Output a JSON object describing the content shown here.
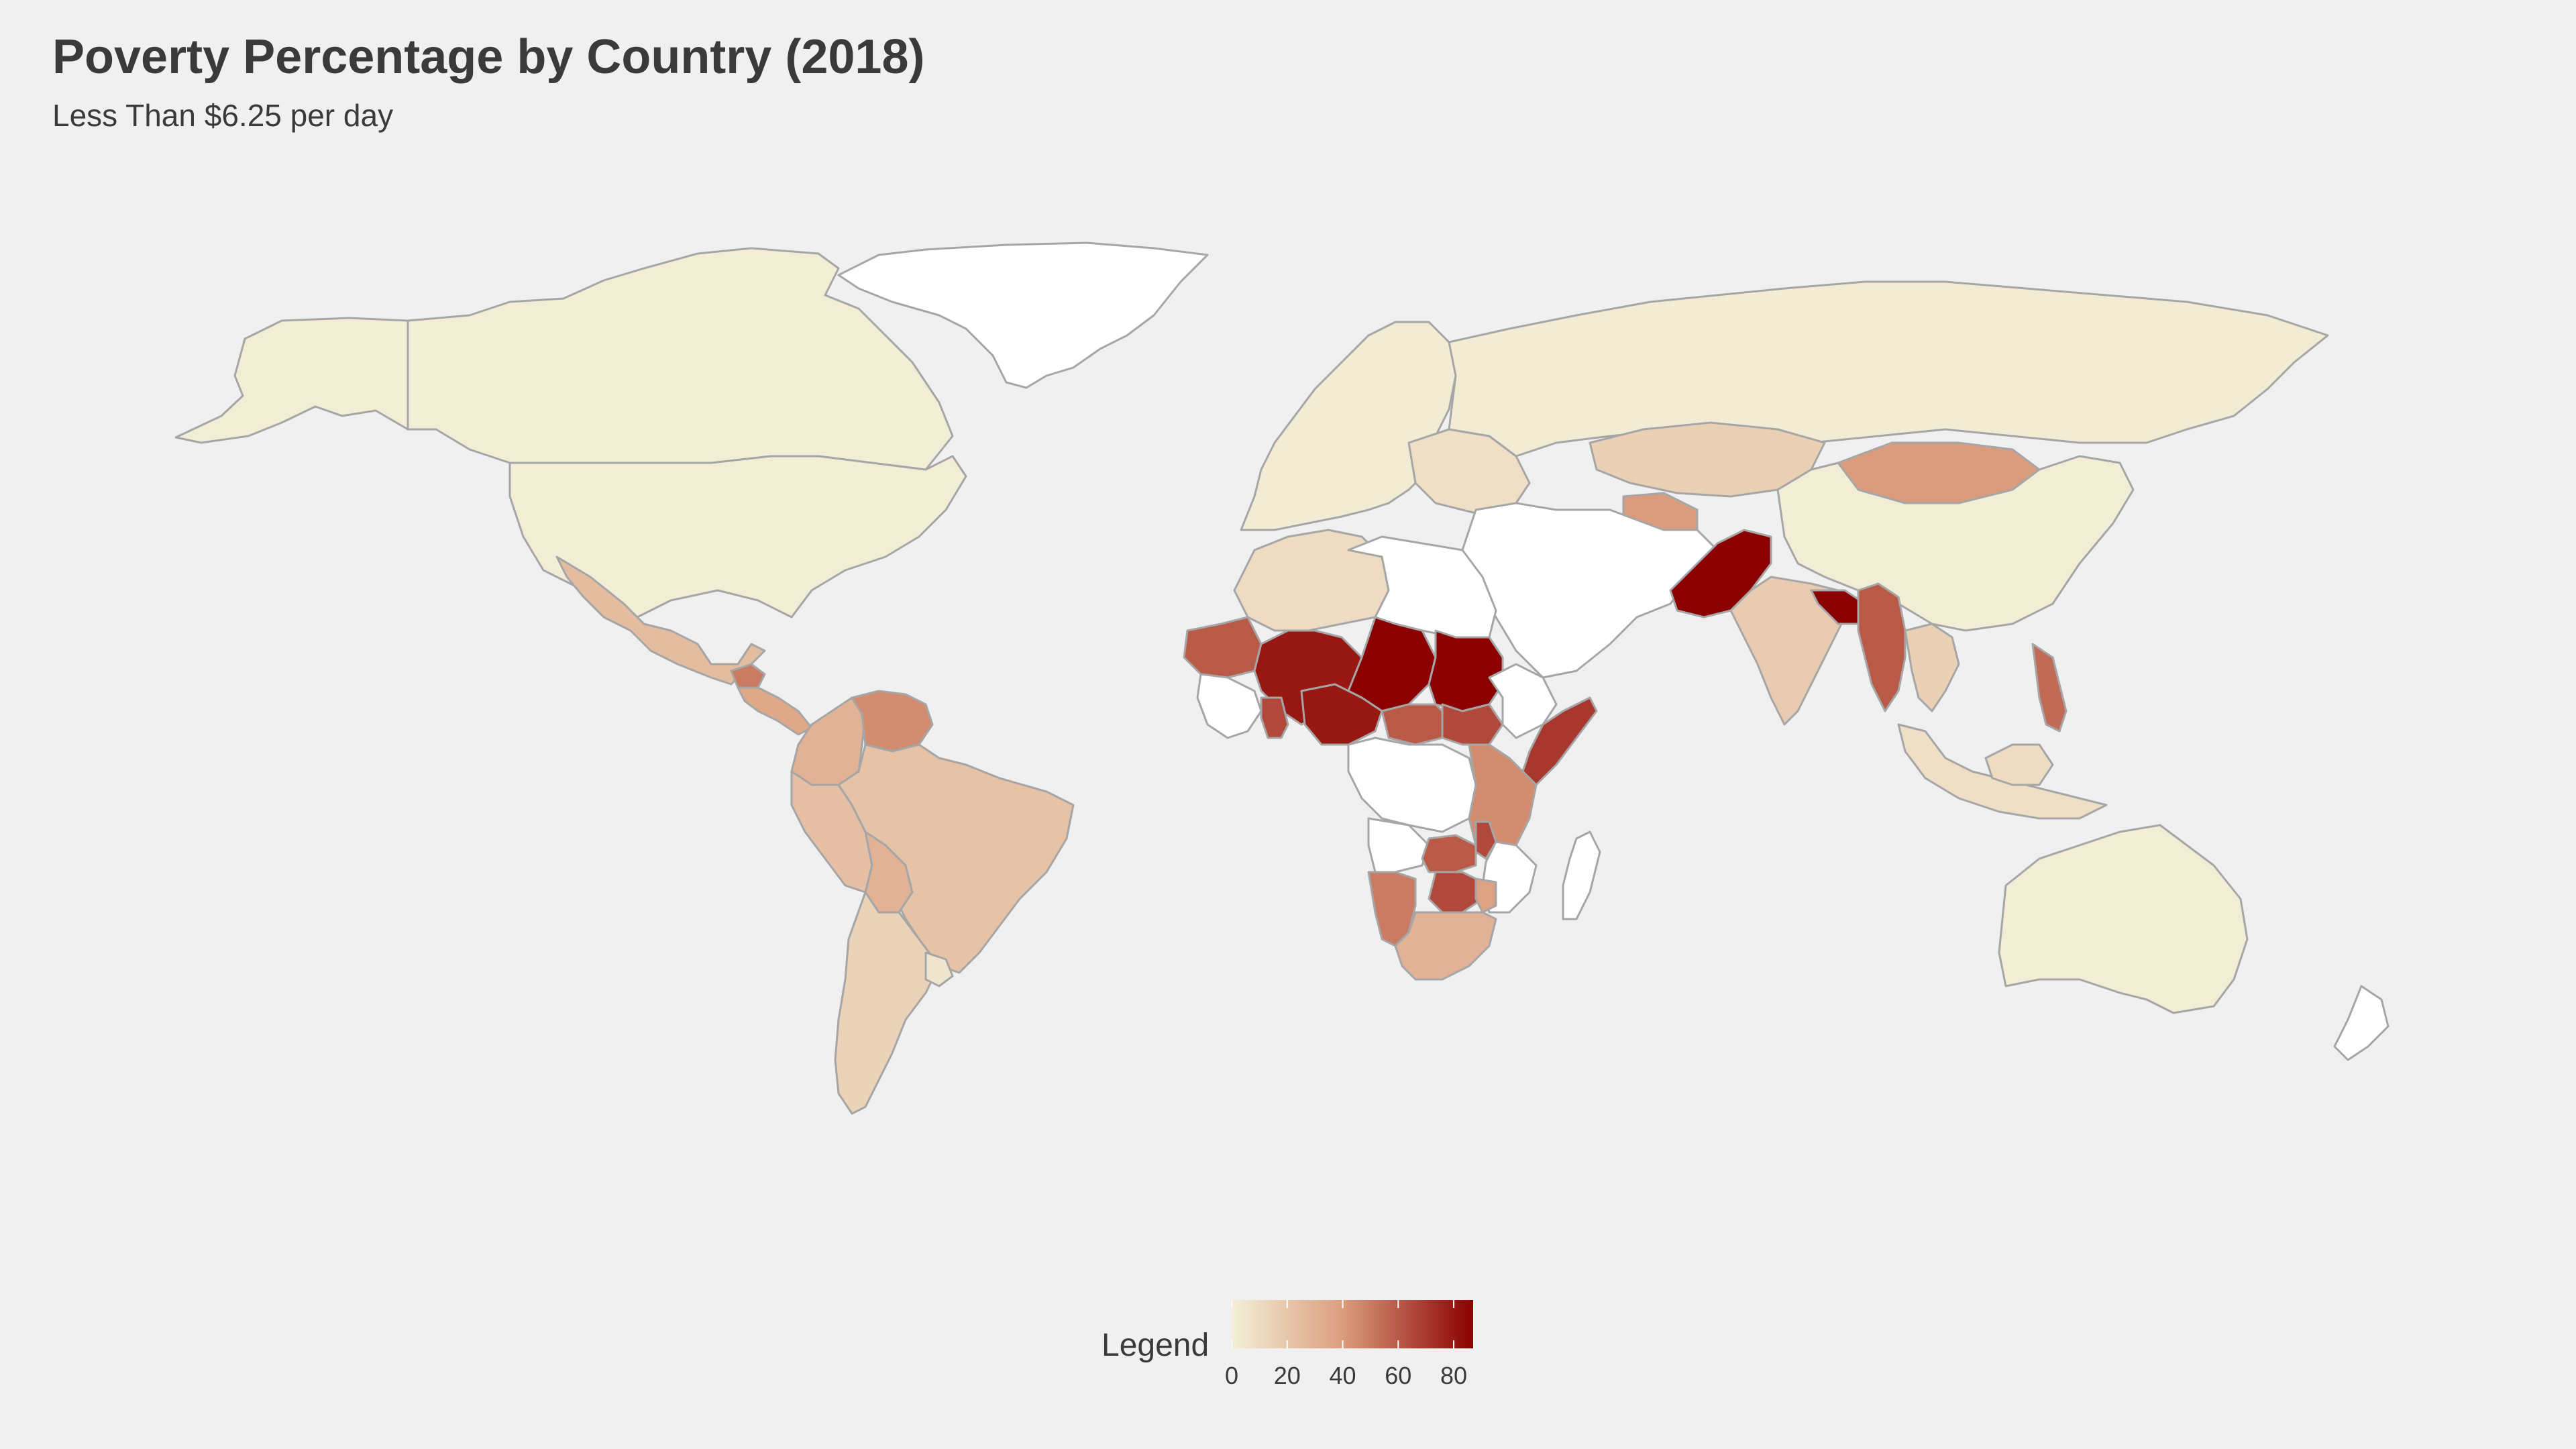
{
  "title": "Poverty Percentage by Country (2018)",
  "subtitle": "Less Than $6.25 per day",
  "legend": {
    "title": "Legend",
    "min": 0,
    "max": 87,
    "ticks": [
      "0",
      "20",
      "40",
      "60",
      "80"
    ],
    "tick_values": [
      0,
      20,
      40,
      60,
      80
    ],
    "color_low": "#f3f0d8",
    "color_mid": "#dc9f80",
    "color_high": "#8b0000"
  },
  "colors": {
    "background": "#f0f0f0",
    "no_data": "#ffffff",
    "border": "#a6a6a6",
    "text": "#3a3a3a"
  },
  "regions": [
    {
      "name": "canada",
      "value": 1,
      "has_data": true
    },
    {
      "name": "usa",
      "value": 1,
      "has_data": true
    },
    {
      "name": "alaska",
      "value": 1,
      "has_data": true
    },
    {
      "name": "greenland",
      "value": null,
      "has_data": false
    },
    {
      "name": "mexico",
      "value": 25,
      "has_data": true
    },
    {
      "name": "guatemala",
      "value": 50,
      "has_data": true
    },
    {
      "name": "central-america",
      "value": 35,
      "has_data": true
    },
    {
      "name": "colombia",
      "value": 30,
      "has_data": true
    },
    {
      "name": "venezuela",
      "value": 45,
      "has_data": true
    },
    {
      "name": "brazil",
      "value": 22,
      "has_data": true
    },
    {
      "name": "peru",
      "value": 23,
      "has_data": true
    },
    {
      "name": "bolivia",
      "value": 30,
      "has_data": true
    },
    {
      "name": "argentina",
      "value": 14,
      "has_data": true
    },
    {
      "name": "uruguay",
      "value": 5,
      "has_data": true
    },
    {
      "name": "europe",
      "value": 2,
      "has_data": true
    },
    {
      "name": "eastern-europe",
      "value": 8,
      "has_data": true
    },
    {
      "name": "russia",
      "value": 2,
      "has_data": true
    },
    {
      "name": "kazakhstan",
      "value": 15,
      "has_data": true
    },
    {
      "name": "mongolia",
      "value": 40,
      "has_data": true
    },
    {
      "name": "china",
      "value": 1,
      "has_data": true
    },
    {
      "name": "turkmenistan",
      "value": 40,
      "has_data": true
    },
    {
      "name": "iraq",
      "value": 30,
      "has_data": true
    },
    {
      "name": "middle-east",
      "value": null,
      "has_data": false
    },
    {
      "name": "pakistan",
      "value": 87,
      "has_data": true
    },
    {
      "name": "india",
      "value": 18,
      "has_data": true
    },
    {
      "name": "bangladesh",
      "value": 87,
      "has_data": true
    },
    {
      "name": "myanmar",
      "value": 60,
      "has_data": true
    },
    {
      "name": "thailand",
      "value": 15,
      "has_data": true
    },
    {
      "name": "southeast-asia",
      "value": 8,
      "has_data": true
    },
    {
      "name": "philippines",
      "value": 55,
      "has_data": true
    },
    {
      "name": "indonesia",
      "value": 10,
      "has_data": true
    },
    {
      "name": "australia",
      "value": 1,
      "has_data": true
    },
    {
      "name": "new-zealand",
      "value": null,
      "has_data": false
    },
    {
      "name": "north-africa",
      "value": 10,
      "has_data": true
    },
    {
      "name": "sahara",
      "value": null,
      "has_data": false
    },
    {
      "name": "mauritania",
      "value": 60,
      "has_data": true
    },
    {
      "name": "mali",
      "value": 80,
      "has_data": true
    },
    {
      "name": "niger",
      "value": 87,
      "has_data": true
    },
    {
      "name": "sudan",
      "value": 87,
      "has_data": true
    },
    {
      "name": "nigeria",
      "value": 80,
      "has_data": true
    },
    {
      "name": "ghana",
      "value": 65,
      "has_data": true
    },
    {
      "name": "central-african-republic",
      "value": 60,
      "has_data": true
    },
    {
      "name": "south-sudan",
      "value": 65,
      "has_data": true
    },
    {
      "name": "somalia",
      "value": 70,
      "has_data": true
    },
    {
      "name": "horn-of-africa",
      "value": null,
      "has_data": false
    },
    {
      "name": "west-africa-coast",
      "value": null,
      "has_data": false
    },
    {
      "name": "central-africa",
      "value": null,
      "has_data": false
    },
    {
      "name": "kenya-tanzania",
      "value": 45,
      "has_data": true
    },
    {
      "name": "zambia",
      "value": 60,
      "has_data": true
    },
    {
      "name": "malawi",
      "value": 65,
      "has_data": true
    },
    {
      "name": "angola",
      "value": null,
      "has_data": false
    },
    {
      "name": "mozambique",
      "value": null,
      "has_data": false
    },
    {
      "name": "namibia",
      "value": 50,
      "has_data": true
    },
    {
      "name": "zimbabwe",
      "value": 65,
      "has_data": true
    },
    {
      "name": "botswana",
      "value": 38,
      "has_data": true
    },
    {
      "name": "south-africa",
      "value": 30,
      "has_data": true
    },
    {
      "name": "madagascar",
      "value": null,
      "has_data": false
    }
  ]
}
